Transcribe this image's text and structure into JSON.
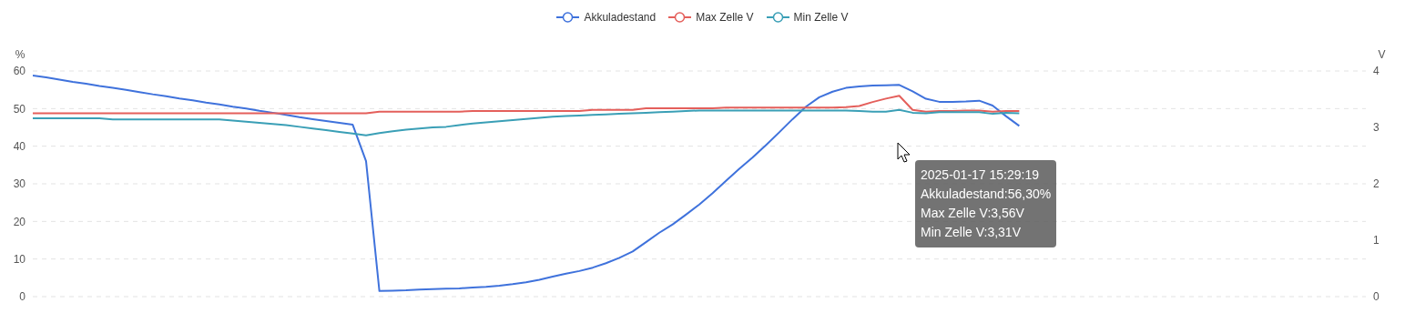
{
  "chart_data": {
    "type": "line",
    "ylabel": "%",
    "y2label": "V",
    "ylim": [
      0,
      60
    ],
    "yticks": [
      0,
      10,
      20,
      30,
      40,
      50,
      60
    ],
    "y2lim": [
      0,
      4
    ],
    "y2ticks": [
      0,
      1,
      2,
      3,
      4
    ],
    "grid": "y",
    "legend": "top",
    "line_style": "solid",
    "categories": [
      null,
      null,
      null,
      null,
      null,
      null,
      null,
      null,
      null,
      null,
      null,
      null,
      null,
      null,
      null,
      null,
      null,
      null,
      null,
      null,
      null,
      null,
      null,
      null,
      null,
      null,
      null,
      null,
      null,
      null,
      null,
      null,
      null,
      null,
      null,
      null,
      null,
      null,
      null,
      null,
      null,
      null,
      null,
      null,
      null,
      null,
      null,
      null,
      null,
      null,
      null,
      null,
      null,
      null,
      null,
      null,
      null,
      null,
      null,
      null,
      null,
      null,
      null,
      null,
      null,
      null,
      null,
      null,
      null,
      null,
      null,
      null,
      null,
      null,
      null,
      null,
      null,
      null,
      null,
      null,
      null,
      null,
      null,
      null,
      null,
      null,
      null,
      null,
      null,
      null,
      null,
      null,
      null,
      null,
      null,
      null,
      null,
      null,
      null,
      null,
      null
    ],
    "series": [
      {
        "name": "Akkuladestand",
        "color": "#3f72dc",
        "values": [
          58.8,
          58.3,
          57.7,
          57.1,
          56.6,
          56.0,
          55.5,
          55.0,
          54.4,
          53.8,
          53.3,
          52.7,
          52.2,
          51.6,
          51.1,
          50.5,
          50.0,
          49.4,
          48.9,
          48.3,
          47.7,
          47.2,
          46.7,
          46.2,
          45.7,
          36.0,
          1.5,
          1.6,
          1.7,
          1.9,
          2.0,
          2.1,
          2.2,
          2.4,
          2.6,
          2.9,
          3.3,
          3.8,
          4.5,
          5.3,
          6.1,
          6.8,
          7.7,
          8.9,
          10.3,
          12.0,
          14.5,
          17.0,
          19.2,
          21.8,
          24.5,
          27.5,
          30.8,
          34.0,
          37.0,
          40.3,
          43.7,
          47.2,
          50.5,
          53.0,
          54.5,
          55.5,
          55.9,
          56.1,
          56.2,
          56.3,
          54.6,
          52.6,
          51.8,
          51.8,
          51.9,
          52.1,
          50.8,
          48.0,
          45.4,
          null,
          null,
          null,
          null,
          null,
          null,
          null,
          null,
          null,
          null,
          null,
          null,
          null,
          null,
          null,
          null,
          null,
          null,
          null,
          null,
          null,
          null,
          null,
          null,
          null,
          null
        ]
      },
      {
        "name": "Max Zelle V",
        "color": "#e45f5b",
        "axis": "y2",
        "values": [
          3.25,
          3.25,
          3.25,
          3.25,
          3.25,
          3.25,
          3.25,
          3.25,
          3.25,
          3.25,
          3.25,
          3.25,
          3.25,
          3.25,
          3.25,
          3.25,
          3.25,
          3.25,
          3.25,
          3.25,
          3.25,
          3.25,
          3.25,
          3.25,
          3.25,
          3.25,
          3.28,
          3.28,
          3.28,
          3.28,
          3.28,
          3.28,
          3.28,
          3.29,
          3.29,
          3.29,
          3.29,
          3.29,
          3.29,
          3.29,
          3.29,
          3.29,
          3.31,
          3.31,
          3.31,
          3.31,
          3.34,
          3.34,
          3.34,
          3.34,
          3.34,
          3.34,
          3.35,
          3.35,
          3.35,
          3.35,
          3.35,
          3.35,
          3.35,
          3.35,
          3.35,
          3.36,
          3.38,
          3.45,
          3.51,
          3.56,
          3.31,
          3.28,
          3.29,
          3.29,
          3.3,
          3.3,
          3.28,
          3.29,
          3.29,
          null,
          null,
          null,
          null,
          null,
          null,
          null,
          null,
          null,
          null,
          null,
          null,
          null,
          null,
          null,
          null,
          null,
          null,
          null,
          null,
          null,
          null,
          null,
          null,
          null,
          null
        ]
      },
      {
        "name": "Min Zelle V",
        "color": "#3a9fb6",
        "axis": "y2",
        "values": [
          3.16,
          3.16,
          3.16,
          3.16,
          3.16,
          3.16,
          3.14,
          3.14,
          3.14,
          3.14,
          3.14,
          3.14,
          3.14,
          3.14,
          3.14,
          3.12,
          3.1,
          3.08,
          3.06,
          3.04,
          3.01,
          2.98,
          2.95,
          2.92,
          2.89,
          2.86,
          2.9,
          2.93,
          2.96,
          2.98,
          3.0,
          3.01,
          3.04,
          3.07,
          3.09,
          3.11,
          3.13,
          3.15,
          3.17,
          3.19,
          3.2,
          3.21,
          3.22,
          3.23,
          3.24,
          3.25,
          3.26,
          3.27,
          3.28,
          3.29,
          3.3,
          3.3,
          3.3,
          3.3,
          3.3,
          3.3,
          3.3,
          3.3,
          3.3,
          3.3,
          3.3,
          3.3,
          3.29,
          3.28,
          3.28,
          3.31,
          3.26,
          3.25,
          3.27,
          3.27,
          3.27,
          3.27,
          3.24,
          3.26,
          3.25,
          null,
          null,
          null,
          null,
          null,
          null,
          null,
          null,
          null,
          null,
          null,
          null,
          null,
          null,
          null,
          null,
          null,
          null,
          null,
          null,
          null,
          null,
          null,
          null,
          null,
          null
        ]
      }
    ],
    "annotations": [
      "2025-01-17 15:29:19",
      "Akkuladestand:56,30%",
      "Max Zelle V:3,56V",
      "Min Zelle V:3,31V"
    ]
  }
}
